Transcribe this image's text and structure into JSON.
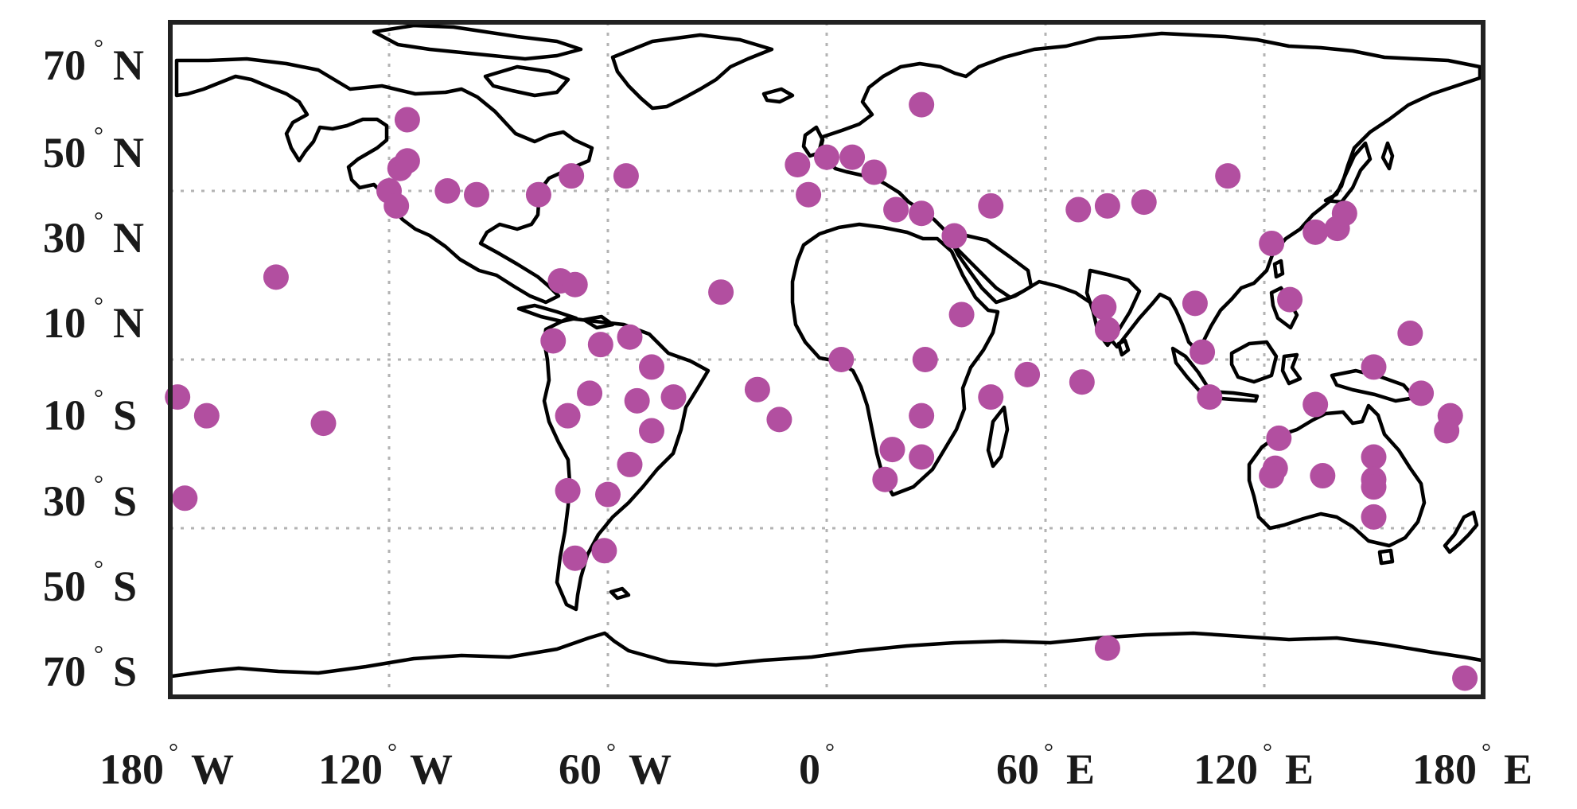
{
  "figure": {
    "map_type": "world station map",
    "projection": "equirectangular",
    "extent": {
      "lon": [
        -180,
        180
      ],
      "lat": [
        -90,
        90
      ]
    },
    "coastline_color": "#000000",
    "marker_color": "#b24fa0",
    "grid": {
      "visible": true,
      "style": "dotted",
      "color": "#b3b3b3"
    }
  },
  "axes": {
    "x_ticks": [
      {
        "value": -180,
        "number": "180",
        "hemi": "W"
      },
      {
        "value": -120,
        "number": "120",
        "hemi": "W"
      },
      {
        "value": -60,
        "number": "60",
        "hemi": "W"
      },
      {
        "value": 0,
        "number": "0",
        "hemi": ""
      },
      {
        "value": 60,
        "number": "60",
        "hemi": "E"
      },
      {
        "value": 120,
        "number": "120",
        "hemi": "E"
      },
      {
        "value": 180,
        "number": "180",
        "hemi": "E"
      }
    ],
    "y_ticks": [
      {
        "value": 70,
        "number": "70",
        "hemi": "N"
      },
      {
        "value": 50,
        "number": "50",
        "hemi": "N"
      },
      {
        "value": 30,
        "number": "30",
        "hemi": "N"
      },
      {
        "value": 10,
        "number": "10",
        "hemi": "N"
      },
      {
        "value": -10,
        "number": "10",
        "hemi": "S"
      },
      {
        "value": -30,
        "number": "30",
        "hemi": "S"
      },
      {
        "value": -50,
        "number": "50",
        "hemi": "S"
      },
      {
        "value": -70,
        "number": "70",
        "hemi": "S"
      }
    ],
    "degree_symbol": "°",
    "grid_lon": [
      -120,
      -60,
      0,
      60,
      120
    ],
    "grid_lat": [
      45,
      0,
      -45
    ]
  },
  "stations": [
    [
      -151,
      22
    ],
    [
      -138,
      -17
    ],
    [
      -170,
      -15
    ],
    [
      -178,
      -10
    ],
    [
      -176,
      -37
    ],
    [
      -115,
      64
    ],
    [
      -117,
      51
    ],
    [
      -115,
      53
    ],
    [
      -120,
      45
    ],
    [
      -118,
      41
    ],
    [
      -104,
      45
    ],
    [
      -96,
      44
    ],
    [
      -79,
      44
    ],
    [
      -70,
      49
    ],
    [
      -55,
      49
    ],
    [
      -73,
      21
    ],
    [
      -69,
      20
    ],
    [
      -75,
      5
    ],
    [
      -62,
      4
    ],
    [
      -54,
      6
    ],
    [
      -48,
      -2
    ],
    [
      -65,
      -9
    ],
    [
      -71,
      -15
    ],
    [
      -52,
      -11
    ],
    [
      -42,
      -10
    ],
    [
      -48,
      -19
    ],
    [
      -54,
      -28
    ],
    [
      -60,
      -36
    ],
    [
      -71,
      -35
    ],
    [
      -69,
      -53
    ],
    [
      -61,
      -51
    ],
    [
      -29,
      18
    ],
    [
      -19,
      -8
    ],
    [
      -13,
      -16
    ],
    [
      -8,
      52
    ],
    [
      -5,
      44
    ],
    [
      0,
      54
    ],
    [
      7,
      54
    ],
    [
      13,
      50
    ],
    [
      19,
      40
    ],
    [
      26,
      68
    ],
    [
      26,
      39
    ],
    [
      35,
      33
    ],
    [
      45,
      41
    ],
    [
      69,
      40
    ],
    [
      77,
      41
    ],
    [
      87,
      42
    ],
    [
      110,
      49
    ],
    [
      37,
      12
    ],
    [
      27,
      0
    ],
    [
      4,
      0
    ],
    [
      45,
      -10
    ],
    [
      55,
      -4
    ],
    [
      70,
      -6
    ],
    [
      26,
      -15
    ],
    [
      18,
      -24
    ],
    [
      26,
      -26
    ],
    [
      16,
      -32
    ],
    [
      77,
      -77
    ],
    [
      76,
      14
    ],
    [
      77,
      8
    ],
    [
      101,
      15
    ],
    [
      103,
      2
    ],
    [
      105,
      -10
    ],
    [
      122,
      31
    ],
    [
      134,
      34
    ],
    [
      140,
      35
    ],
    [
      142,
      39
    ],
    [
      127,
      16
    ],
    [
      150,
      -2
    ],
    [
      160,
      7
    ],
    [
      163,
      -9
    ],
    [
      134,
      -12
    ],
    [
      124,
      -21
    ],
    [
      123,
      -29
    ],
    [
      122,
      -31
    ],
    [
      136,
      -31
    ],
    [
      150,
      -26
    ],
    [
      150,
      -32
    ],
    [
      150,
      -34
    ],
    [
      150,
      -42
    ],
    [
      171,
      -15
    ],
    [
      170,
      -19
    ],
    [
      175,
      -85
    ]
  ]
}
